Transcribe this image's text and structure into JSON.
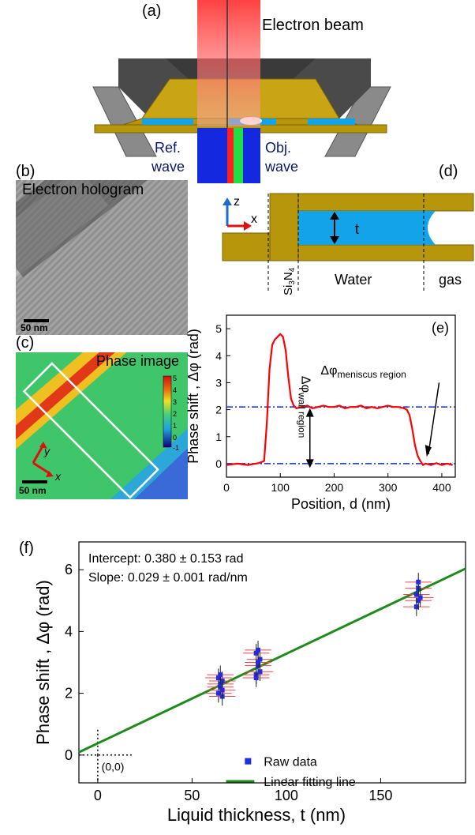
{
  "panels": {
    "a": "(a)",
    "b": "(b)",
    "c": "(c)",
    "d": "(d)",
    "e": "(e)",
    "f": "(f)"
  },
  "panel_a": {
    "title": "Electron  beam",
    "ref_wave_1": "Ref.",
    "ref_wave_2": "wave",
    "obj_wave_1": "Obj.",
    "obj_wave_2": "wave"
  },
  "panel_b": {
    "title": "Electron hologram",
    "scale": "50 nm"
  },
  "panel_c": {
    "title": "Phase image",
    "scale": "50 nm",
    "colorbar_ticks": [
      "5",
      "4",
      "3",
      "2",
      "1",
      "0",
      "-1"
    ],
    "axis_y": "y",
    "axis_x": "x"
  },
  "panel_d": {
    "z": "z",
    "x": "x",
    "t": "t",
    "si3n4": "Si3N4",
    "water": "Water",
    "gas": "gas"
  },
  "colors": {
    "gold": "#b8960c",
    "water": "#12a3e8",
    "curve": "#ff0000",
    "fit": "#1a8c1a",
    "points": "#1f2ee0",
    "err": "#ff4040"
  },
  "chart_data": [
    {
      "type": "line",
      "panel": "(e)",
      "xlabel": "Position, d (nm)",
      "ylabel": "Phase shift , Δφ  (rad)",
      "xlim": [
        0,
        425
      ],
      "ylim": [
        -0.5,
        5.5
      ],
      "xticks": [
        0,
        100,
        200,
        300,
        400
      ],
      "yticks": [
        0,
        1,
        2,
        3,
        4,
        5
      ],
      "annotations": [
        "Δφmeniscus region",
        "Δφwall region"
      ],
      "x": [
        0,
        20,
        40,
        60,
        70,
        75,
        80,
        85,
        90,
        95,
        100,
        105,
        110,
        115,
        120,
        125,
        130,
        140,
        150,
        160,
        170,
        180,
        190,
        200,
        210,
        220,
        230,
        240,
        250,
        260,
        270,
        280,
        290,
        300,
        310,
        320,
        330,
        335,
        340,
        345,
        350,
        355,
        360,
        365,
        370,
        380,
        390,
        400,
        410,
        420
      ],
      "y": [
        -0.05,
        0.0,
        -0.05,
        0.02,
        0.1,
        1.5,
        3.5,
        4.4,
        4.6,
        4.7,
        4.8,
        4.7,
        4.2,
        3.2,
        2.4,
        2.15,
        2.05,
        2.1,
        2.15,
        2.05,
        2.1,
        2.15,
        2.1,
        2.1,
        2.15,
        2.05,
        2.1,
        2.1,
        2.15,
        2.05,
        2.1,
        2.05,
        2.1,
        2.15,
        2.1,
        2.1,
        2.05,
        2.0,
        1.8,
        1.3,
        0.7,
        0.3,
        0.1,
        -0.05,
        0.0,
        -0.05,
        0.02,
        -0.05,
        0.0,
        -0.05
      ],
      "reference_lines": [
        0,
        2.1
      ]
    },
    {
      "type": "scatter",
      "panel": "(f)",
      "xlabel": "Liquid thickness, t (nm)",
      "ylabel": "Phase shift , Δφ  (rad)",
      "xlim": [
        -10,
        195
      ],
      "ylim": [
        -0.9,
        6.9
      ],
      "xticks": [
        0,
        50,
        100,
        150
      ],
      "yticks": [
        0,
        2,
        4,
        6
      ],
      "intercept_text": "Intercept: 0.380 ± 0.153 rad",
      "slope_text": "Slope: 0.029 ± 0.001 rad/nm",
      "origin_label": "(0,0)",
      "legend": [
        "Raw data",
        "Linear fitting line"
      ],
      "fit": {
        "intercept": 0.38,
        "slope": 0.029
      },
      "x": [
        64,
        65,
        66,
        64,
        65,
        66,
        65,
        66,
        84,
        85,
        86,
        84,
        85,
        86,
        85,
        84,
        169,
        170,
        169,
        170,
        171,
        170
      ],
      "y": [
        2.0,
        2.2,
        2.4,
        2.5,
        2.3,
        1.9,
        2.6,
        2.1,
        2.6,
        2.9,
        3.1,
        3.3,
        3.0,
        2.7,
        3.4,
        2.5,
        4.8,
        5.0,
        5.2,
        5.4,
        5.1,
        5.6
      ]
    }
  ]
}
